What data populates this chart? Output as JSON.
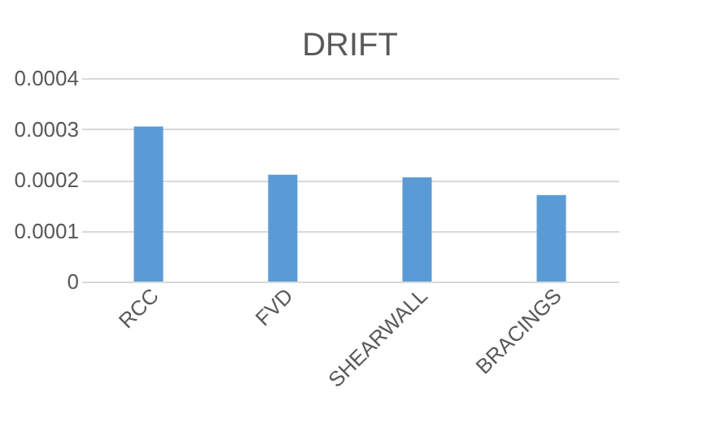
{
  "chart_data": {
    "type": "bar",
    "title": "DRIFT",
    "categories": [
      "RCC",
      "FVD",
      "SHEARWALL",
      "BRACINGS"
    ],
    "values": [
      0.000305,
      0.00021,
      0.000205,
      0.00017
    ],
    "color": "#5b9bd5",
    "ylim": [
      0,
      0.0004
    ],
    "yticks": [
      0,
      0.0001,
      0.0002,
      0.0003,
      0.0004
    ],
    "grid": "y"
  }
}
